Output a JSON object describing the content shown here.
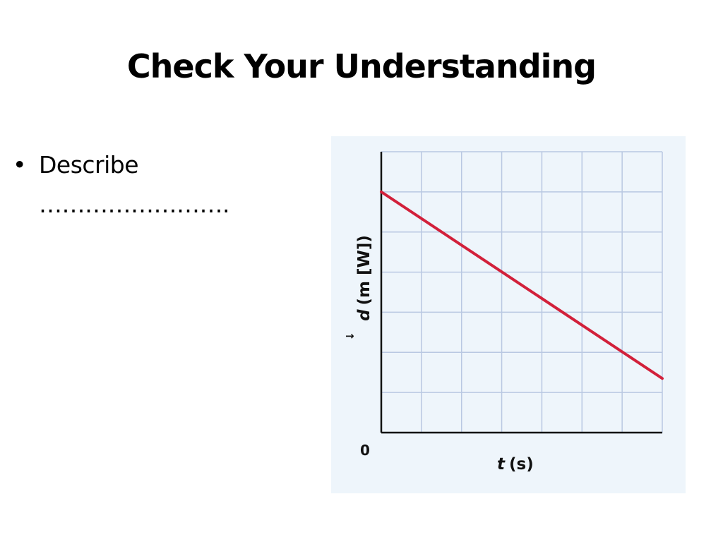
{
  "slide": {
    "title": "Check Your Understanding",
    "bullet": {
      "symbol": "•",
      "line1": "Describe",
      "line2": "…………………….",
      "full_text": "Describe ……………………."
    }
  },
  "chart_data": {
    "type": "line",
    "title": "",
    "xlabel": "t (s)",
    "ylabel": "d (m [W])",
    "x_variable": "t",
    "x_unit": "(s)",
    "y_variable": "d",
    "y_vector_arrow": "→",
    "y_unit": "(m [W])",
    "origin_label": "0",
    "xlim": [
      0,
      7
    ],
    "ylim": [
      0,
      7
    ],
    "grid": true,
    "grid_cells": {
      "x": 7,
      "y": 7
    },
    "legend": "none",
    "series": [
      {
        "color": "#d2203a",
        "x": [
          0,
          7
        ],
        "y": [
          6,
          1.35
        ]
      }
    ],
    "colors": {
      "panel_background": "#eef5fb",
      "grid": "#b9c8e2",
      "axis": "#111111",
      "line": "#d2203a"
    }
  }
}
